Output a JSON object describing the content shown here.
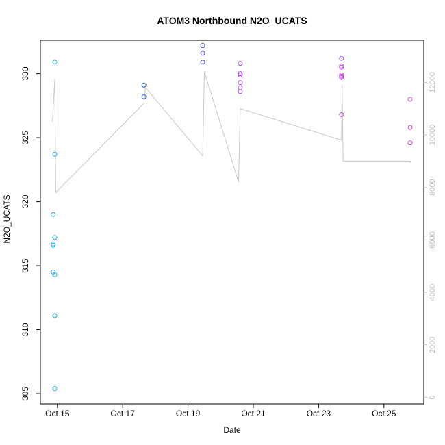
{
  "chart_data": {
    "type": "scatter",
    "title": "ATOM3 Northbound N2O_UCATS",
    "xlabel": "Date",
    "ylabel": "N2O_UCATS",
    "x_ticks": [
      {
        "day": 15,
        "label": "Oct 15"
      },
      {
        "day": 17,
        "label": "Oct 17"
      },
      {
        "day": 19,
        "label": "Oct 19"
      },
      {
        "day": 21,
        "label": "Oct 21"
      },
      {
        "day": 23,
        "label": "Oct 23"
      },
      {
        "day": 25,
        "label": "Oct 25"
      }
    ],
    "xlim": [
      14.48,
      26.22
    ],
    "ylim": [
      304.2,
      332.6
    ],
    "y_ticks": [
      305,
      310,
      315,
      320,
      325,
      330
    ],
    "y2lim": [
      -250,
      13600
    ],
    "y2_ticks": [
      0,
      2000,
      4000,
      6000,
      8000,
      10000,
      12000
    ],
    "points": [
      {
        "day": 14.92,
        "n2o": 330.9,
        "color": "#22aee6"
      },
      {
        "day": 14.92,
        "n2o": 323.7,
        "color": "#22aee6"
      },
      {
        "day": 14.87,
        "n2o": 319.0,
        "color": "#22aee6"
      },
      {
        "day": 14.92,
        "n2o": 317.2,
        "color": "#22aee6"
      },
      {
        "day": 14.87,
        "n2o": 316.7,
        "color": "#22aee6"
      },
      {
        "day": 14.87,
        "n2o": 316.6,
        "color": "#22aee6"
      },
      {
        "day": 14.87,
        "n2o": 314.5,
        "color": "#22aee6"
      },
      {
        "day": 14.92,
        "n2o": 314.3,
        "color": "#22aee6"
      },
      {
        "day": 14.92,
        "n2o": 311.1,
        "color": "#22aee6"
      },
      {
        "day": 14.92,
        "n2o": 305.4,
        "color": "#22aee6"
      },
      {
        "day": 17.65,
        "n2o": 329.1,
        "color": "#2f62e0"
      },
      {
        "day": 17.65,
        "n2o": 328.2,
        "color": "#2f62e0"
      },
      {
        "day": 19.45,
        "n2o": 332.2,
        "color": "#3b3be0"
      },
      {
        "day": 19.45,
        "n2o": 331.6,
        "color": "#3b3be0"
      },
      {
        "day": 19.45,
        "n2o": 330.9,
        "color": "#3b3be0"
      },
      {
        "day": 20.6,
        "n2o": 330.8,
        "color": "#a640e6"
      },
      {
        "day": 20.6,
        "n2o": 330.0,
        "color": "#a640e6"
      },
      {
        "day": 20.6,
        "n2o": 329.9,
        "color": "#a640e6"
      },
      {
        "day": 20.6,
        "n2o": 329.3,
        "color": "#a640e6"
      },
      {
        "day": 20.6,
        "n2o": 328.9,
        "color": "#a640e6"
      },
      {
        "day": 20.6,
        "n2o": 328.6,
        "color": "#a640e6"
      },
      {
        "day": 23.7,
        "n2o": 331.2,
        "color": "#c23fe6"
      },
      {
        "day": 23.7,
        "n2o": 330.6,
        "color": "#c23fe6"
      },
      {
        "day": 23.7,
        "n2o": 330.5,
        "color": "#c23fe6"
      },
      {
        "day": 23.7,
        "n2o": 329.9,
        "color": "#c23fe6"
      },
      {
        "day": 23.7,
        "n2o": 329.8,
        "color": "#c23fe6"
      },
      {
        "day": 23.7,
        "n2o": 329.7,
        "color": "#c23fe6"
      },
      {
        "day": 23.7,
        "n2o": 326.8,
        "color": "#c23fe6"
      },
      {
        "day": 25.8,
        "n2o": 328.0,
        "color": "#e23fd6"
      },
      {
        "day": 25.8,
        "n2o": 325.8,
        "color": "#e23fd6"
      },
      {
        "day": 25.8,
        "n2o": 324.6,
        "color": "#e23fd6"
      }
    ],
    "altitude_line": {
      "color": "#c8c8c8",
      "axis": "right",
      "points": [
        [
          14.85,
          10500
        ],
        [
          14.92,
          12100
        ],
        [
          14.92,
          12000
        ],
        [
          14.95,
          7800
        ],
        [
          17.65,
          11200
        ],
        [
          17.7,
          11800
        ],
        [
          19.45,
          9200
        ],
        [
          19.5,
          12400
        ],
        [
          20.55,
          8200
        ],
        [
          20.6,
          11000
        ],
        [
          23.7,
          9800
        ],
        [
          23.72,
          11900
        ],
        [
          23.75,
          9000
        ],
        [
          25.8,
          9000
        ],
        [
          25.82,
          8950
        ]
      ]
    }
  }
}
